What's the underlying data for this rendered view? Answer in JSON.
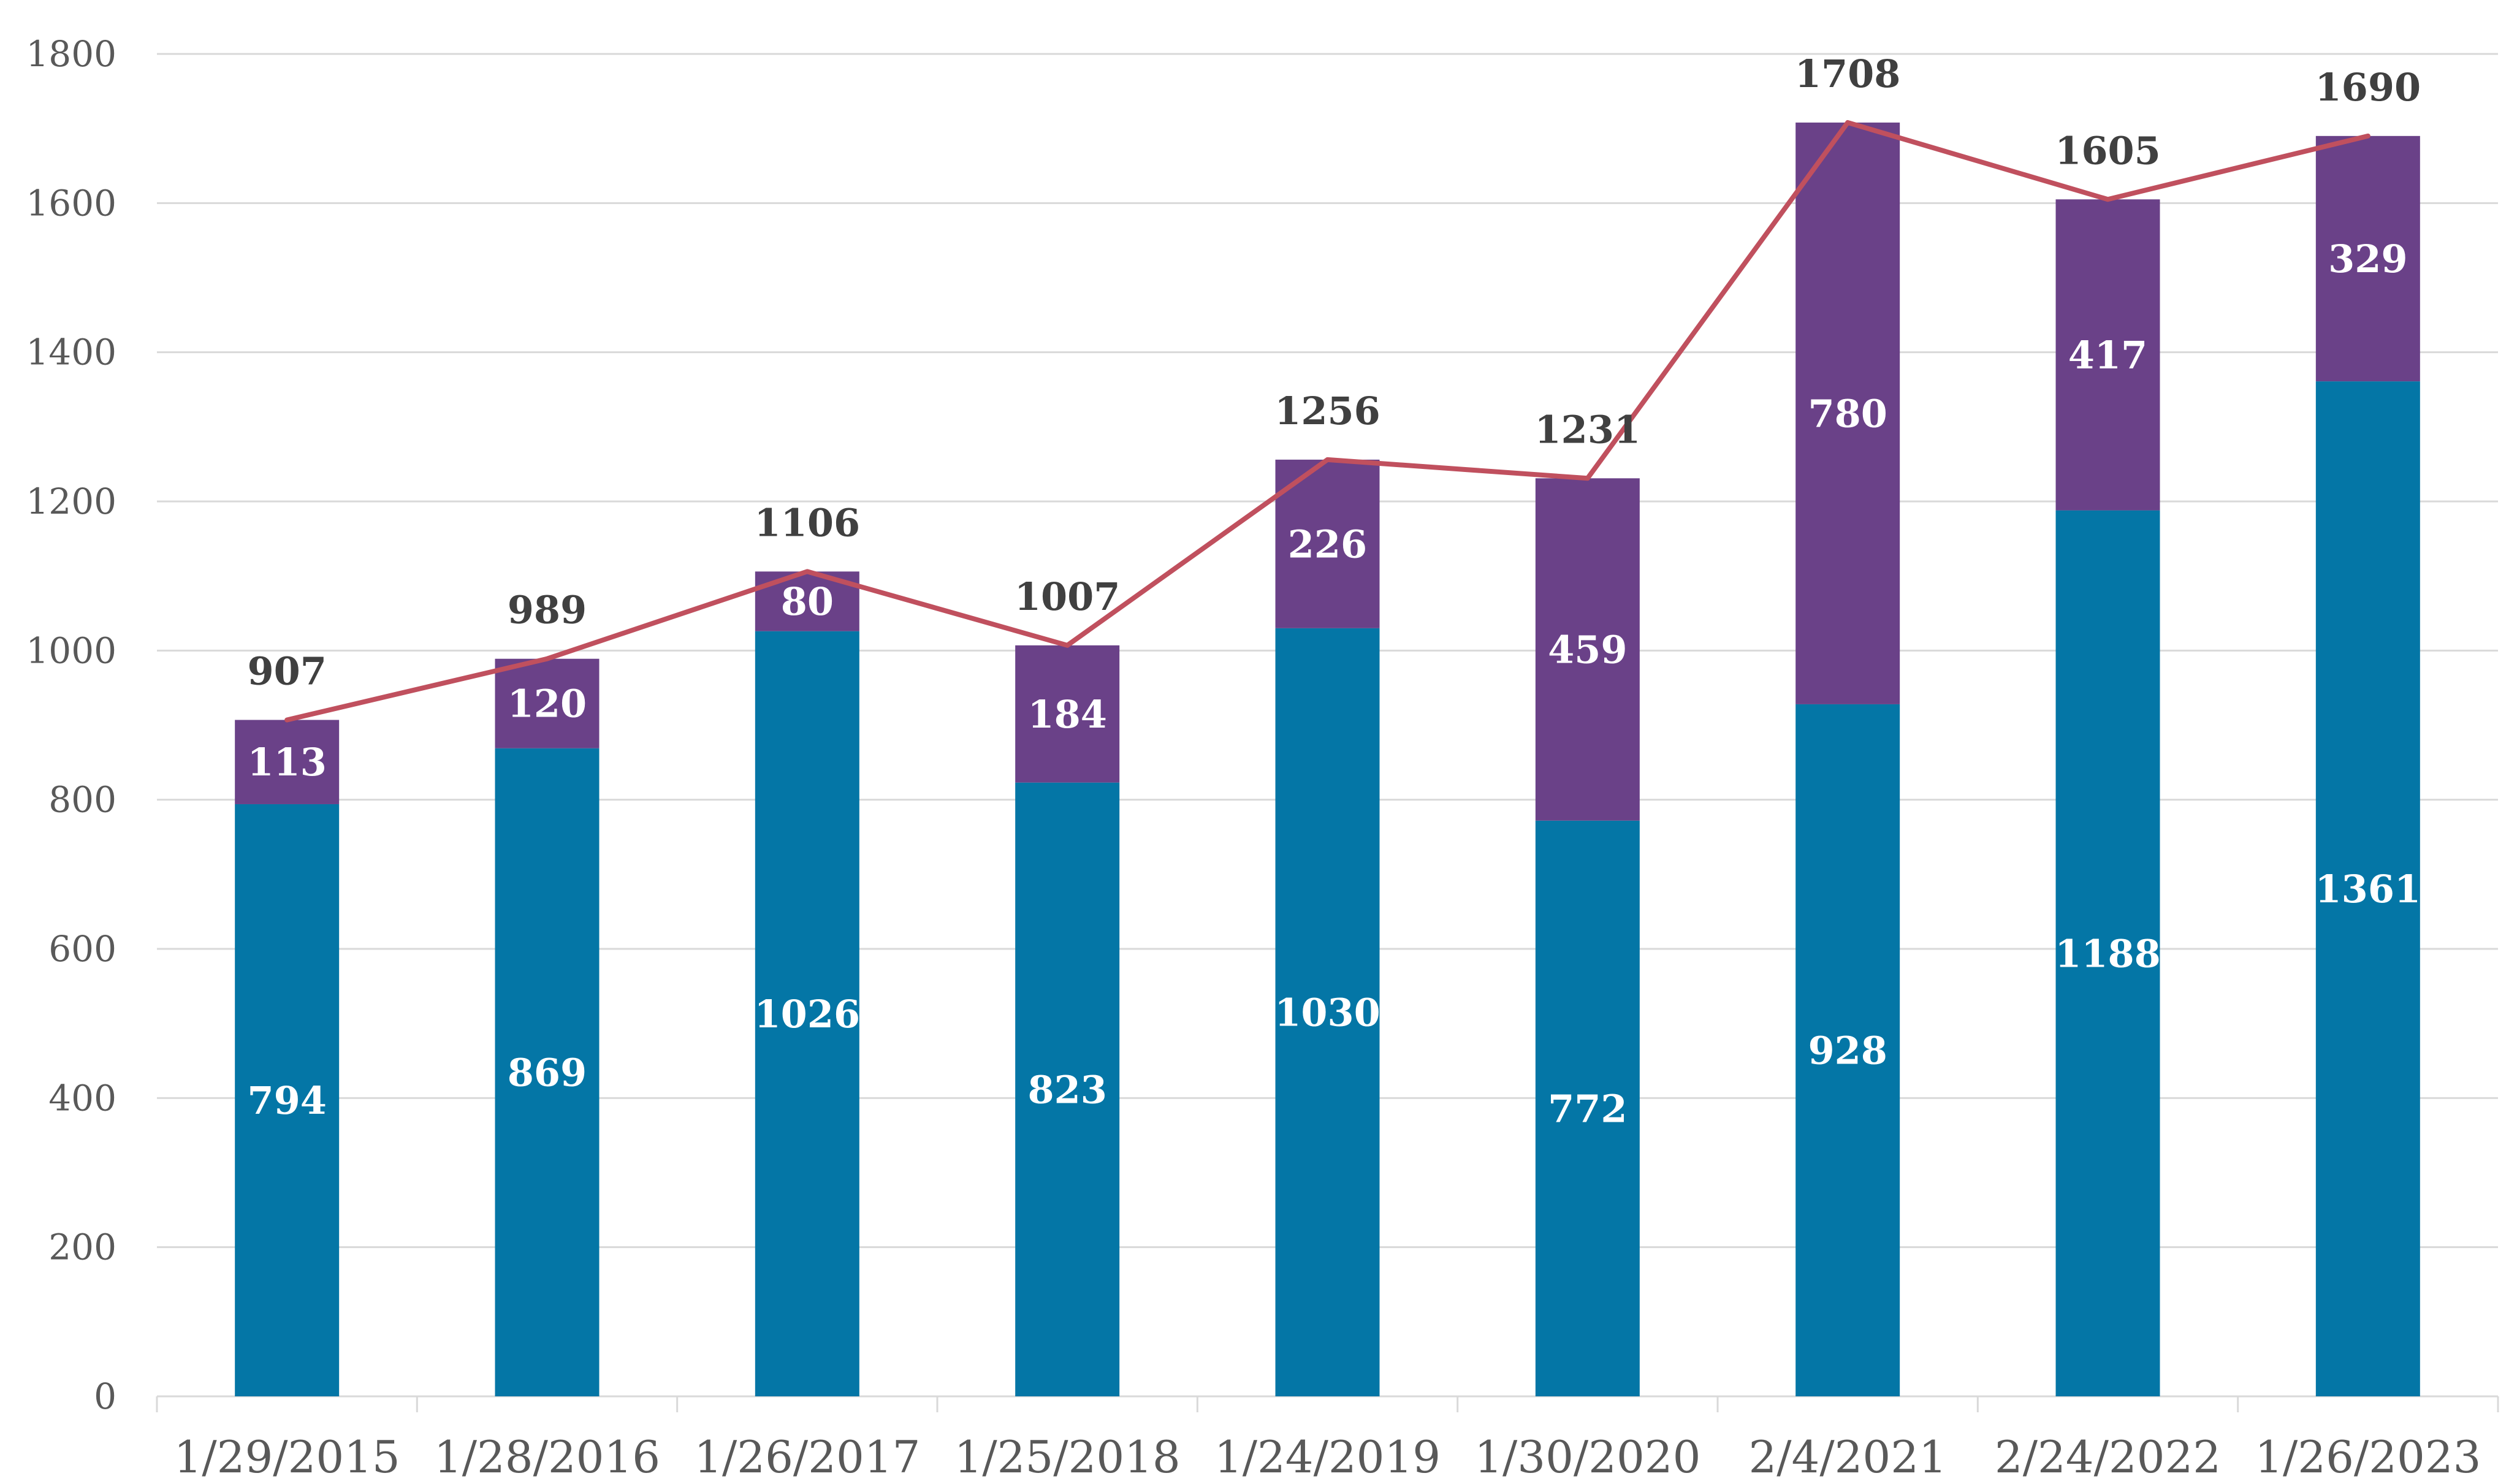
{
  "chart_data": {
    "type": "bar",
    "stacked": true,
    "categories": [
      "1/29/2015",
      "1/28/2016",
      "1/26/2017",
      "1/25/2018",
      "1/24/2019",
      "1/30/2020",
      "2/4/2021",
      "2/24/2022",
      "1/26/2023"
    ],
    "series": [
      {
        "values": [
          794,
          869,
          1026,
          823,
          1030,
          772,
          928,
          1188,
          1361
        ],
        "color": "#0476A6",
        "kind": "bar"
      },
      {
        "values": [
          113,
          120,
          80,
          184,
          226,
          459,
          780,
          417,
          329
        ],
        "color": "#6A4188",
        "kind": "bar"
      },
      {
        "values": [
          907,
          989,
          1106,
          1007,
          1256,
          1231,
          1708,
          1605,
          1690
        ],
        "color": "#C0505E",
        "kind": "line"
      }
    ],
    "ylim": [
      0,
      1800
    ],
    "yticks": [
      0,
      200,
      400,
      600,
      800,
      1000,
      1200,
      1400,
      1600,
      1800
    ],
    "grid": true,
    "legend": "none",
    "title": "",
    "xlabel": "",
    "ylabel": ""
  }
}
